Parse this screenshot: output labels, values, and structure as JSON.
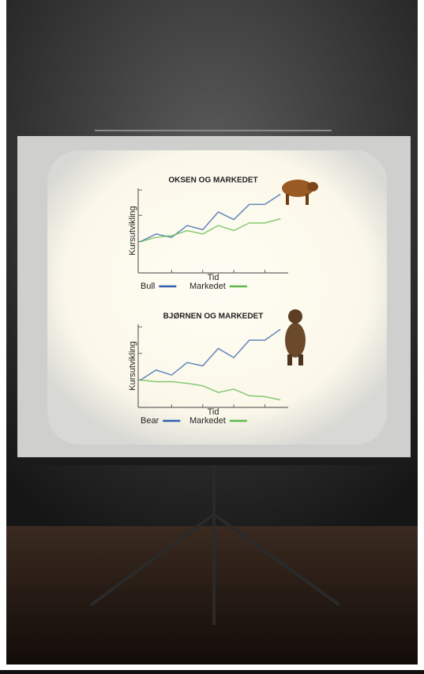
{
  "chart_data": [
    {
      "type": "line",
      "title": "OKSEN OG MARKEDET",
      "x_label": "Tid",
      "y_label": "Kursutvikling",
      "x": [
        0,
        1,
        2,
        3,
        4,
        5,
        6,
        7,
        8,
        9
      ],
      "series": [
        {
          "name": "Bull",
          "color": "#2f5fae",
          "values": [
            37,
            46,
            42,
            56,
            51,
            72,
            63,
            81,
            81,
            93
          ]
        },
        {
          "name": "Markedet",
          "color": "#5cb848",
          "values": [
            37,
            42,
            44,
            50,
            46,
            56,
            50,
            59,
            59,
            64
          ]
        }
      ],
      "xlim": [
        0,
        9.5
      ],
      "xticks": [
        2,
        4,
        6,
        8
      ],
      "ylim": [
        0,
        100
      ],
      "yticks": [
        37,
        68,
        98
      ]
    },
    {
      "type": "line",
      "title": "BJØRNEN OG MARKEDET",
      "x_label": "Tid",
      "y_label": "Kursutvikling",
      "x": [
        0,
        1,
        2,
        3,
        4,
        5,
        6,
        7,
        8,
        9
      ],
      "series": [
        {
          "name": "Bear",
          "color": "#2f5fae",
          "values": [
            33,
            45,
            39,
            54,
            50,
            71,
            60,
            81,
            81,
            94
          ]
        },
        {
          "name": "Markedet",
          "color": "#5cb848",
          "values": [
            33,
            31,
            31,
            29,
            26,
            18,
            22,
            14,
            13,
            9
          ]
        }
      ],
      "xlim": [
        0,
        9.5
      ],
      "xticks": [
        2,
        4,
        6,
        8
      ],
      "ylim": [
        0,
        100
      ],
      "yticks": [
        33,
        65,
        97
      ]
    }
  ]
}
